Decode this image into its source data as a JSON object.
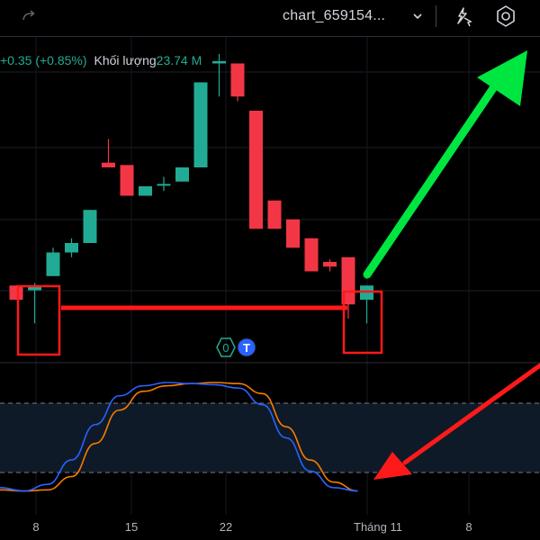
{
  "header": {
    "chart_name": "chart_659154...",
    "icons": {
      "redo": "redo-icon",
      "chevron": "chevron-down-icon",
      "quick_action": "lightning-cursor-icon",
      "settings": "gear-hexagon-icon"
    }
  },
  "legend": {
    "change": "+0.35 (+0.85%)",
    "volume_label": "Khối lượng",
    "volume_value": "23.74 M"
  },
  "badges": {
    "zero": "0",
    "t": "T"
  },
  "colors": {
    "up": "#22ab94",
    "down": "#f23645",
    "stoch_k": "#2962ff",
    "stoch_d": "#f57c00",
    "arrow_up": "#00e640",
    "arrow_down": "#ff1a1a",
    "marker": "#ff1a1a"
  },
  "chart_data": {
    "type": "candlestick",
    "x_ticks": [
      "8",
      "15",
      "22",
      "Tháng 11",
      "8"
    ],
    "candles": [
      {
        "dir": "down",
        "o": 41.9,
        "c": 41.6,
        "h": 41.9,
        "l": 41.6
      },
      {
        "dir": "up",
        "o": 41.8,
        "c": 41.9,
        "h": 41.95,
        "l": 41.1
      },
      {
        "dir": "up",
        "o": 42.1,
        "c": 42.6,
        "h": 42.7,
        "l": 42.1
      },
      {
        "dir": "up",
        "o": 42.6,
        "c": 42.8,
        "h": 42.9,
        "l": 42.5
      },
      {
        "dir": "up",
        "o": 42.8,
        "c": 43.5,
        "h": 43.5,
        "l": 42.8
      },
      {
        "dir": "down",
        "o": 44.5,
        "c": 44.4,
        "h": 45.0,
        "l": 44.4
      },
      {
        "dir": "down",
        "o": 44.45,
        "c": 43.8,
        "h": 44.45,
        "l": 43.8
      },
      {
        "dir": "up",
        "o": 43.8,
        "c": 44.0,
        "h": 44.0,
        "l": 43.8
      },
      {
        "dir": "up",
        "o": 44.05,
        "c": 44.05,
        "h": 44.2,
        "l": 43.9
      },
      {
        "dir": "up",
        "o": 44.1,
        "c": 44.4,
        "h": 44.4,
        "l": 44.1
      },
      {
        "dir": "up",
        "o": 44.4,
        "c": 46.2,
        "h": 46.2,
        "l": 44.4
      },
      {
        "dir": "up",
        "o": 46.6,
        "c": 46.65,
        "h": 46.8,
        "l": 45.9
      },
      {
        "dir": "down",
        "o": 46.6,
        "c": 45.9,
        "h": 46.6,
        "l": 45.8
      },
      {
        "dir": "down",
        "o": 45.6,
        "c": 43.1,
        "h": 45.6,
        "l": 43.1
      },
      {
        "dir": "down",
        "o": 43.7,
        "c": 43.1,
        "h": 43.7,
        "l": 43.1
      },
      {
        "dir": "down",
        "o": 43.3,
        "c": 42.7,
        "h": 43.3,
        "l": 42.7
      },
      {
        "dir": "down",
        "o": 42.9,
        "c": 42.2,
        "h": 42.9,
        "l": 42.2
      },
      {
        "dir": "down",
        "o": 42.4,
        "c": 42.3,
        "h": 42.45,
        "l": 42.2
      },
      {
        "dir": "down",
        "o": 42.5,
        "c": 41.5,
        "h": 42.5,
        "l": 41.2
      },
      {
        "dir": "up",
        "o": 41.6,
        "c": 41.9,
        "h": 41.9,
        "l": 41.1
      }
    ],
    "oscillator": {
      "k": [
        5,
        2,
        8,
        30,
        62,
        88,
        97,
        100,
        99,
        98,
        95,
        80,
        50,
        20,
        5,
        2
      ],
      "d": [
        3,
        2,
        3,
        15,
        45,
        75,
        92,
        97,
        99,
        100,
        99,
        90,
        60,
        30,
        10,
        2
      ],
      "levels": [
        80,
        20
      ]
    }
  }
}
